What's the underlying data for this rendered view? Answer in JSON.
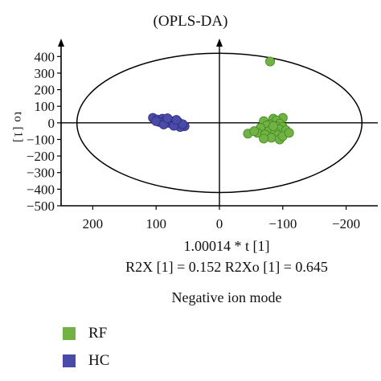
{
  "title": "(OPLS-DA)",
  "xlabel": "1.00014 * t [1]",
  "stats_line": "R2X [1] = 0.152 R2Xo [1] = 0.645",
  "mode_line": "Negative ion mode",
  "ylabel_partial": "to [1]",
  "colors": {
    "RF": "#72b244",
    "HC": "#4a4aa8"
  },
  "chart_data": {
    "type": "scatter",
    "title": "(OPLS-DA)",
    "xlabel": "1.00014 * t [1]",
    "ylabel": "to [1]",
    "xlim": [
      250,
      -250
    ],
    "ylim": [
      -500,
      450
    ],
    "x_reversed": true,
    "xticks": [
      200,
      100,
      0,
      -100,
      -200
    ],
    "yticks": [
      400,
      300,
      200,
      100,
      0,
      -100,
      -200,
      -300,
      -400,
      -500
    ],
    "grid": false,
    "legend_position": "bottom-left",
    "ellipse": {
      "cx": 0,
      "cy": 0,
      "rx": 225,
      "ry": 420
    },
    "series": [
      {
        "name": "RF",
        "color": "#72b244",
        "points": [
          [
            -80,
            370
          ],
          [
            -100,
            30
          ],
          [
            -85,
            25
          ],
          [
            -90,
            15
          ],
          [
            -70,
            10
          ],
          [
            -95,
            -5
          ],
          [
            -80,
            -10
          ],
          [
            -75,
            -15
          ],
          [
            -90,
            -20
          ],
          [
            -100,
            -25
          ],
          [
            -65,
            -30
          ],
          [
            -85,
            -35
          ],
          [
            -95,
            -40
          ],
          [
            -105,
            -45
          ],
          [
            -78,
            -50
          ],
          [
            -88,
            -55
          ],
          [
            -60,
            -60
          ],
          [
            -45,
            -65
          ],
          [
            -72,
            -70
          ],
          [
            -92,
            -75
          ],
          [
            -82,
            -90
          ],
          [
            -95,
            -100
          ],
          [
            -100,
            -80
          ],
          [
            -70,
            -95
          ],
          [
            -55,
            -50
          ],
          [
            -110,
            -60
          ],
          [
            -85,
            -20
          ]
        ]
      },
      {
        "name": "HC",
        "color": "#4a4aa8",
        "points": [
          [
            105,
            30
          ],
          [
            98,
            20
          ],
          [
            90,
            25
          ],
          [
            85,
            15
          ],
          [
            95,
            5
          ],
          [
            80,
            0
          ],
          [
            75,
            10
          ],
          [
            70,
            -5
          ],
          [
            65,
            5
          ],
          [
            60,
            -15
          ],
          [
            55,
            -20
          ],
          [
            62,
            -25
          ],
          [
            100,
            10
          ],
          [
            88,
            -10
          ],
          [
            72,
            -18
          ],
          [
            58,
            -8
          ],
          [
            68,
            18
          ],
          [
            82,
            28
          ]
        ]
      }
    ]
  }
}
